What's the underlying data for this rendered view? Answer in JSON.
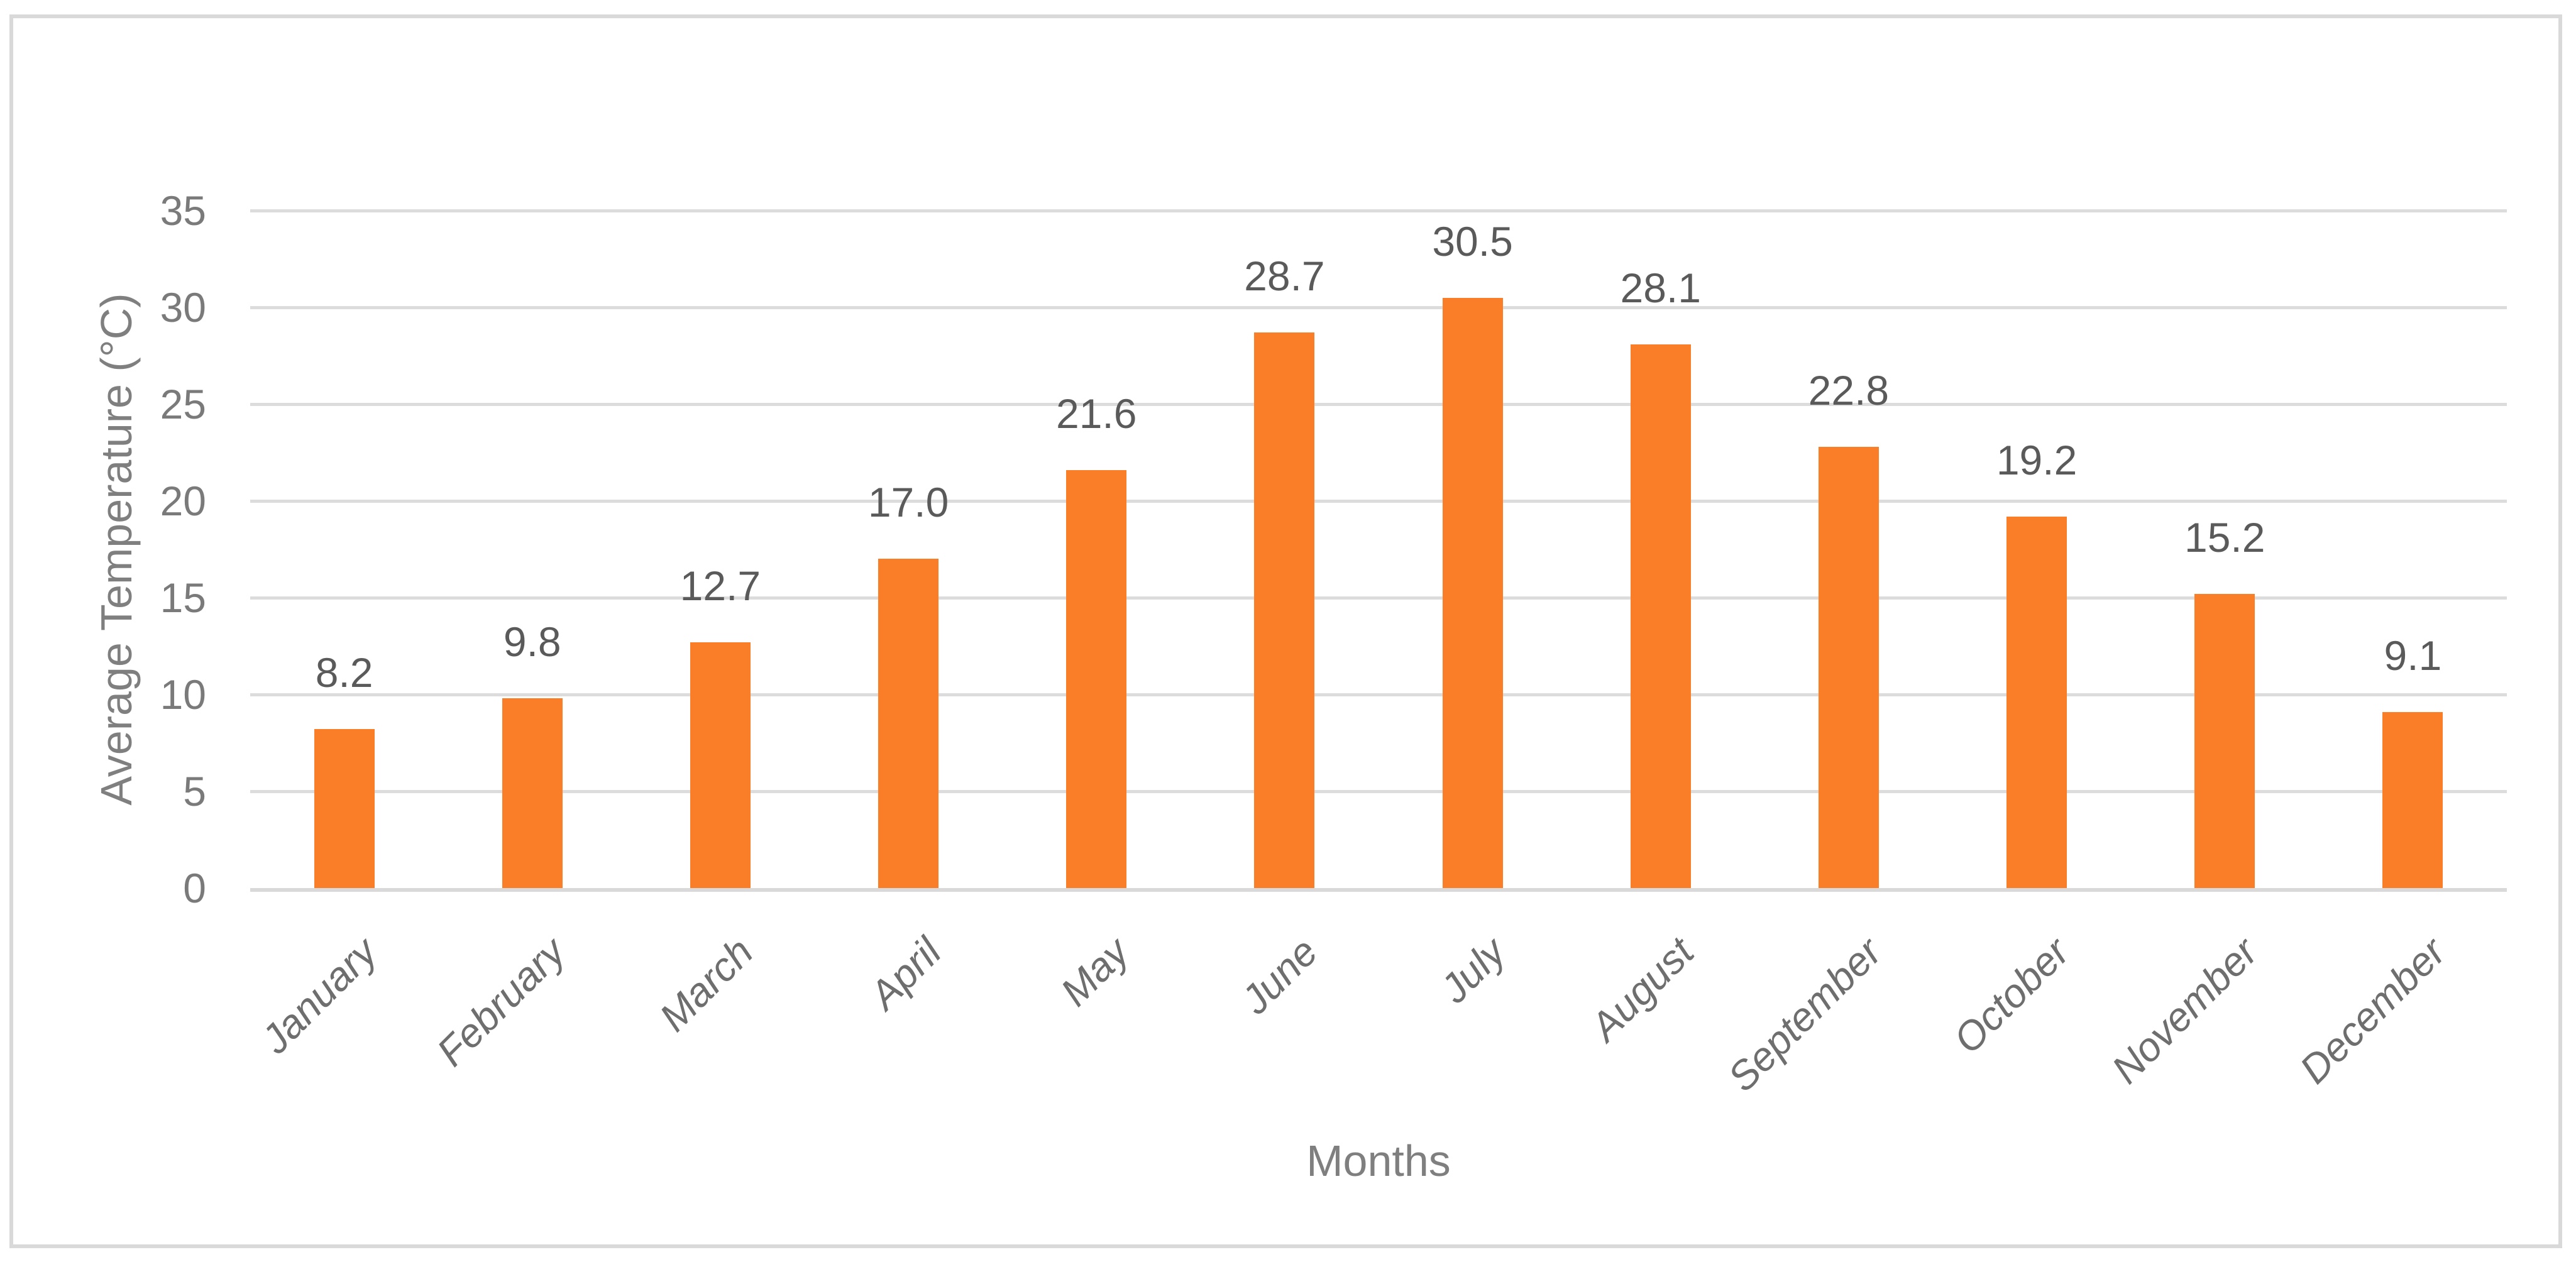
{
  "figure": {
    "background": "#FFFFFF",
    "frame_border_color": "#D9D9D9"
  },
  "chart_data": {
    "type": "bar",
    "title": "",
    "xlabel": "Months",
    "ylabel": "Average Temperature (°C)",
    "categories": [
      "January",
      "February",
      "March",
      "April",
      "May",
      "June",
      "July",
      "August",
      "September",
      "October",
      "November",
      "December"
    ],
    "values": [
      8.2,
      9.8,
      12.7,
      17.0,
      21.6,
      28.7,
      30.5,
      28.1,
      22.8,
      19.2,
      15.2,
      9.1
    ],
    "value_labels": [
      "8.2",
      "9.8",
      "12.7",
      "17.0",
      "21.6",
      "28.7",
      "30.5",
      "28.1",
      "22.8",
      "19.2",
      "15.2",
      "9.1"
    ],
    "ylim": [
      0,
      35
    ],
    "yticks": [
      0,
      5,
      10,
      15,
      20,
      25,
      30,
      35
    ],
    "grid": true,
    "legend": "none",
    "bar_color": "#F97E27",
    "gridline_color": "#DCDCDC",
    "axis_line_color": "#D9D9D9",
    "tick_label_color": "#7A7A7A",
    "data_label_color": "#5A5A5A",
    "category_label_color": "#6E6E6E",
    "axis_title_color": "#7F7F7F"
  }
}
